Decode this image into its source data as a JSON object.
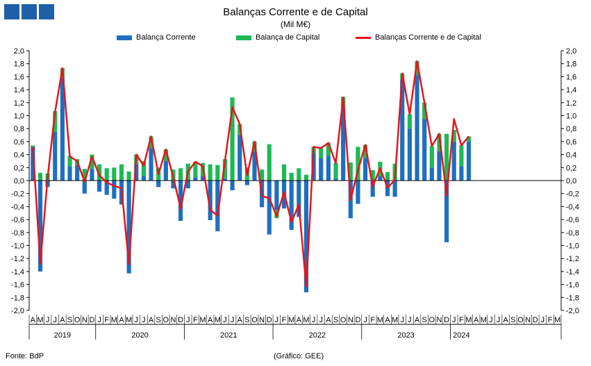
{
  "title": "Balanças Corrente e de Capital",
  "subtitle": "(Mil M€)",
  "source": "Fonte: BdP",
  "credit": "(Gráfico: GEE)",
  "colors": {
    "current": "#1e6fc0",
    "capital": "#1db955",
    "total": "#e8141a",
    "logo": "#1f5fa8"
  },
  "chart_data": {
    "type": "bar",
    "stacked": true,
    "ylim": [
      -2.0,
      2.0
    ],
    "ytick_step": 0.2,
    "grid": false,
    "legend_position": "top",
    "month_labels": [
      "A",
      "M",
      "J",
      "J",
      "A",
      "S",
      "O",
      "N",
      "D",
      "J",
      "F",
      "M",
      "A",
      "M",
      "J",
      "J",
      "A",
      "S",
      "O",
      "N",
      "D",
      "J",
      "F",
      "M",
      "A",
      "M",
      "J",
      "J",
      "A",
      "S",
      "O",
      "N",
      "D",
      "J",
      "F",
      "M",
      "A",
      "M",
      "J",
      "J",
      "A",
      "S",
      "O",
      "N",
      "D",
      "J",
      "F",
      "M",
      "A",
      "M",
      "J",
      "J",
      "A",
      "S",
      "O",
      "N",
      "D",
      "J",
      "F",
      "M",
      "A",
      "M",
      "J",
      "J",
      "A",
      "S",
      "O",
      "N",
      "D",
      "J",
      "F",
      "M"
    ],
    "year_labels": [
      {
        "label": "2019",
        "start": 0,
        "end": 8
      },
      {
        "label": "2020",
        "start": 9,
        "end": 20
      },
      {
        "label": "2021",
        "start": 21,
        "end": 32
      },
      {
        "label": "2022",
        "start": 33,
        "end": 44
      },
      {
        "label": "2023",
        "start": 45,
        "end": 56
      },
      {
        "label": "2024",
        "start": 57,
        "end": 59
      }
    ],
    "series": [
      {
        "name": "Balança Corrente",
        "type": "bar",
        "values": [
          0.52,
          -1.4,
          -0.1,
          0.75,
          1.58,
          0.22,
          0.24,
          -0.2,
          0.18,
          -0.17,
          -0.22,
          -0.28,
          -0.37,
          -1.43,
          0.25,
          0.07,
          0.5,
          -0.1,
          0.3,
          -0.12,
          -0.62,
          -0.12,
          0.05,
          0.07,
          -0.61,
          -0.78,
          0.03,
          -0.15,
          0.7,
          -0.07,
          0.45,
          -0.41,
          -0.83,
          -0.45,
          -0.43,
          -0.76,
          -0.56,
          -1.72,
          0.42,
          0.35,
          0.38,
          0.03,
          1.13,
          -0.58,
          -0.36,
          0.35,
          -0.25,
          0.07,
          -0.24,
          -0.25,
          1.55,
          0.8,
          1.62,
          0.95,
          0.2,
          0.45,
          -0.95,
          0.6,
          0.22,
          0.6
        ]
      },
      {
        "name": "Balança de Capital",
        "type": "bar",
        "values": [
          0.02,
          0.12,
          0.11,
          0.32,
          0.15,
          0.16,
          0.09,
          0.18,
          0.22,
          0.25,
          0.19,
          0.2,
          0.25,
          0.14,
          0.15,
          0.23,
          0.18,
          0.2,
          0.18,
          0.17,
          0.19,
          0.26,
          0.24,
          0.2,
          0.25,
          0.24,
          0.3,
          1.28,
          0.17,
          0.2,
          0.15,
          0.17,
          0.56,
          -0.13,
          0.25,
          0.12,
          0.19,
          0.09,
          0.1,
          0.15,
          0.2,
          0.24,
          0.16,
          0.28,
          0.52,
          0.2,
          0.16,
          0.22,
          0.13,
          0.26,
          0.1,
          0.22,
          0.22,
          0.25,
          0.33,
          0.27,
          0.72,
          0.18,
          0.32,
          0.08
        ]
      },
      {
        "name": "Balanças Corrente e de Capital",
        "type": "line",
        "values": [
          0.52,
          -1.28,
          0.05,
          1.05,
          1.73,
          0.37,
          0.3,
          -0.02,
          0.37,
          0.08,
          -0.03,
          -0.08,
          -0.12,
          -1.29,
          0.4,
          0.23,
          0.68,
          0.1,
          0.48,
          0.05,
          -0.43,
          0.14,
          0.29,
          0.22,
          -0.45,
          -0.54,
          0.3,
          1.13,
          0.87,
          0.08,
          0.6,
          -0.24,
          -0.27,
          -0.55,
          -0.18,
          -0.64,
          -0.37,
          -1.63,
          0.52,
          0.5,
          0.58,
          0.27,
          1.28,
          -0.3,
          0.16,
          0.55,
          -0.09,
          0.19,
          -0.11,
          0.01,
          1.65,
          1.02,
          1.84,
          1.2,
          0.53,
          0.72,
          -0.23,
          0.95,
          0.54,
          0.68
        ]
      }
    ]
  },
  "legend": {
    "current_label": "Balança Corrente",
    "capital_label": "Balança de Capital",
    "total_label": "Balanças Corrente e de Capital"
  }
}
